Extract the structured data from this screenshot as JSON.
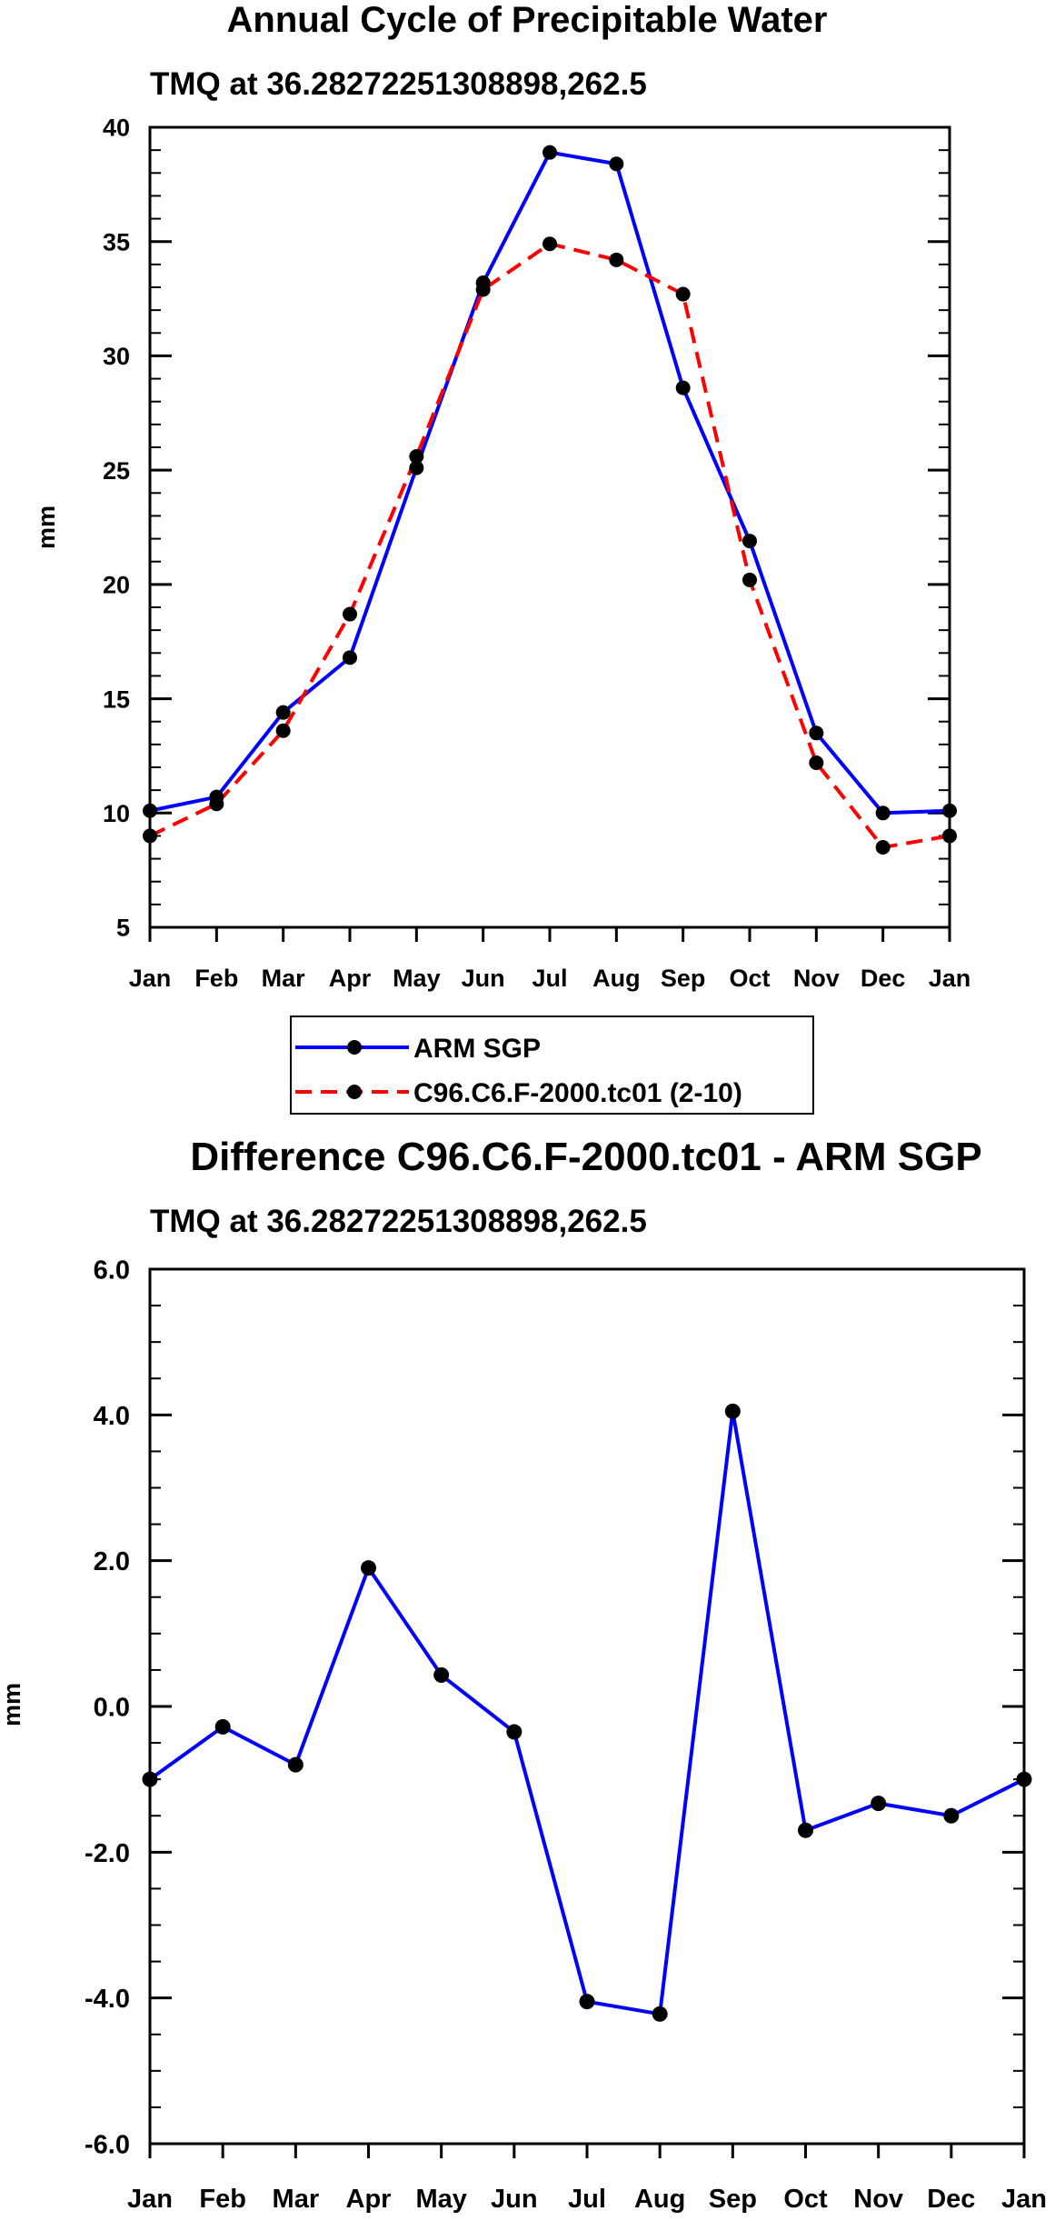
{
  "chart_data": [
    {
      "type": "line",
      "title": "Annual Cycle of Precipitable Water",
      "subtitle": "TMQ at 36.28272251308898,262.5",
      "xlabel": "",
      "ylabel": "mm",
      "categories": [
        "Jan",
        "Feb",
        "Mar",
        "Apr",
        "May",
        "Jun",
        "Jul",
        "Aug",
        "Sep",
        "Oct",
        "Nov",
        "Dec",
        "Jan"
      ],
      "ylim": [
        5,
        40
      ],
      "yticks": [
        5,
        10,
        15,
        20,
        25,
        30,
        35,
        40
      ],
      "ytick_labels": [
        "5",
        "10",
        "15",
        "20",
        "25",
        "30",
        "35",
        "40"
      ],
      "legend_position": "below",
      "series": [
        {
          "name": "ARM SGP",
          "color": "#0000ff",
          "dash": "solid",
          "values": [
            10.1,
            10.7,
            14.4,
            16.8,
            25.1,
            33.2,
            38.9,
            38.4,
            28.6,
            21.9,
            13.5,
            10.0,
            10.1
          ]
        },
        {
          "name": "C96.C6.F-2000.tc01 (2-10)",
          "color": "#ff0000",
          "dash": "dashed",
          "values": [
            9.0,
            10.4,
            13.6,
            18.7,
            25.6,
            32.9,
            34.9,
            34.2,
            32.7,
            20.2,
            12.2,
            8.5,
            9.0
          ]
        }
      ]
    },
    {
      "type": "line",
      "title": "Difference C96.C6.F-2000.tc01 - ARM SGP",
      "subtitle": "TMQ at 36.28272251308898,262.5",
      "xlabel": "",
      "ylabel": "mm",
      "categories": [
        "Jan",
        "Feb",
        "Mar",
        "Apr",
        "May",
        "Jun",
        "Jul",
        "Aug",
        "Sep",
        "Oct",
        "Nov",
        "Dec",
        "Jan"
      ],
      "ylim": [
        -6,
        6
      ],
      "yticks": [
        -6,
        -4,
        -2,
        0,
        2,
        4,
        6
      ],
      "ytick_labels": [
        "-6.0",
        "-4.0",
        "-2.0",
        "0.0",
        "2.0",
        "4.0",
        "6.0"
      ],
      "series": [
        {
          "name": "Difference",
          "color": "#0000ff",
          "dash": "solid",
          "values": [
            -1.0,
            -0.28,
            -0.8,
            1.9,
            0.43,
            -0.35,
            -4.05,
            -4.22,
            4.05,
            -1.7,
            -1.33,
            -1.5,
            -1.0
          ]
        }
      ]
    }
  ]
}
